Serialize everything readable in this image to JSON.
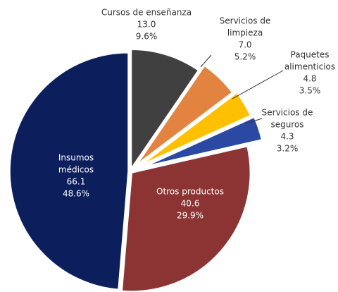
{
  "chart_data": {
    "type": "pie",
    "categories": [
      [
        "Insumos",
        "médicos"
      ],
      [
        "Otros productos"
      ],
      [
        "Servicios de",
        "seguros"
      ],
      [
        "Paquetes",
        "alimenticios"
      ],
      [
        "Servicios de",
        "limpieza"
      ],
      [
        "Cursos de enseñanza"
      ]
    ],
    "values": [
      66.1,
      40.6,
      4.3,
      4.8,
      7.0,
      13.0
    ],
    "value_labels": [
      "66.1",
      "40.6",
      "4.3",
      "4.8",
      "7.0",
      "13.0"
    ],
    "percent_labels": [
      "48.6%",
      "29.9%",
      "3.2%",
      "3.5%",
      "5.2%",
      "9.6%"
    ],
    "colors": [
      "#0c1f5c",
      "#8c3434",
      "#2b48a3",
      "#ffc000",
      "#e2843f",
      "#404040"
    ],
    "direction": "counterclockwise",
    "start": "top"
  }
}
